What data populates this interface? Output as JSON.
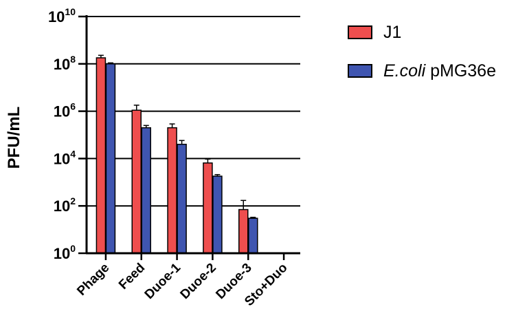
{
  "chart_data": {
    "type": "bar",
    "title": "",
    "xlabel": "",
    "ylabel": "PFU/mL",
    "yscale": "log",
    "ylim": [
      1,
      10000000000
    ],
    "yticks": [
      {
        "base": "10",
        "exp": "0",
        "value": 1
      },
      {
        "base": "10",
        "exp": "2",
        "value": 100
      },
      {
        "base": "10",
        "exp": "4",
        "value": 10000
      },
      {
        "base": "10",
        "exp": "6",
        "value": 1000000
      },
      {
        "base": "10",
        "exp": "8",
        "value": 100000000
      },
      {
        "base": "10",
        "exp": "10",
        "value": 10000000000
      }
    ],
    "grid": true,
    "legend_position": "top-right",
    "categories": [
      "Phage",
      "Feed",
      "Duoe-1",
      "Duoe-2",
      "Duoe-3",
      "Sto+Duo"
    ],
    "series": [
      {
        "name": "J1",
        "color": "#ee4e4e",
        "values": [
          180000000,
          1100000,
          200000,
          6500,
          70,
          null
        ],
        "error_upper": [
          230000000,
          1800000,
          290000,
          9500,
          170,
          null
        ]
      },
      {
        "name": "E.coli pMG36e",
        "name_italic": "E.coli",
        "name_rest": " pMG36e",
        "color": "#3f55b0",
        "values": [
          100000000,
          200000,
          40000,
          1800,
          30,
          null
        ],
        "error_upper": [
          110000000,
          250000,
          58000,
          2100,
          33,
          null
        ]
      }
    ]
  }
}
